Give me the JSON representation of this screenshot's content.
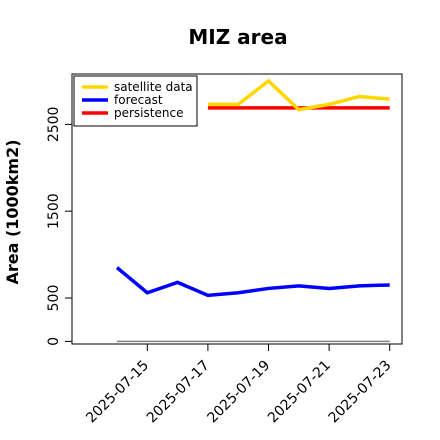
{
  "chart_data": {
    "type": "line",
    "title": "MIZ area",
    "xlabel": "",
    "ylabel": "Area (1000km2)",
    "x": [
      "2025-07-14",
      "2025-07-15",
      "2025-07-16",
      "2025-07-17",
      "2025-07-18",
      "2025-07-19",
      "2025-07-20",
      "2025-07-21",
      "2025-07-22",
      "2025-07-23"
    ],
    "x_ticks": [
      "2025-07-15",
      "2025-07-17",
      "2025-07-19",
      "2025-07-21",
      "2025-07-23"
    ],
    "ylim": [
      -30,
      3080
    ],
    "y_ticks": [
      0,
      500,
      1500,
      2500
    ],
    "grid": false,
    "legend_position": "top-left",
    "series": [
      {
        "name": "satellite data",
        "color": "#FFD700",
        "values": [
          null,
          null,
          null,
          2730,
          2730,
          3000,
          2670,
          2730,
          2820,
          2790
        ]
      },
      {
        "name": "forecast",
        "color": "#0000FF",
        "values": [
          850,
          560,
          680,
          530,
          560,
          610,
          640,
          610,
          640,
          650
        ]
      },
      {
        "name": "persistence",
        "color": "#FF0000",
        "values": [
          null,
          null,
          null,
          2690,
          2690,
          2690,
          2690,
          2690,
          2690,
          2690
        ]
      }
    ],
    "baseline": {
      "value": 0,
      "color": "#808080"
    },
    "tick_label_colors": {
      "2025-07-15": "#228B22"
    }
  }
}
